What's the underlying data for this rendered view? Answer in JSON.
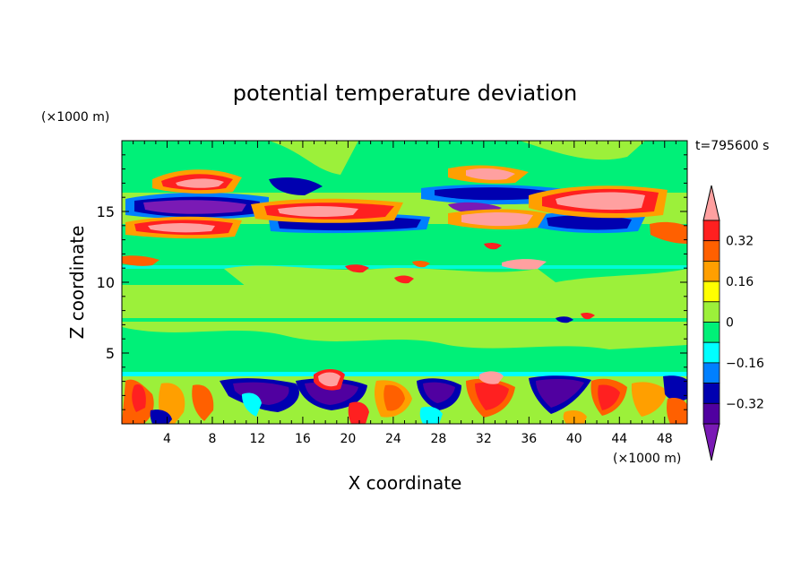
{
  "chart_data": {
    "type": "heatmap",
    "title": "potential temperature deviation",
    "xlabel": "X coordinate",
    "ylabel": "Z coordinate",
    "x_unit": "(×1000 m)",
    "y_unit": "(×1000 m)",
    "time_label": "t=795600 s",
    "xlim": [
      0,
      50
    ],
    "ylim": [
      0,
      20
    ],
    "x_ticks": [
      "4",
      "8",
      "12",
      "16",
      "20",
      "24",
      "28",
      "32",
      "36",
      "40",
      "44",
      "48"
    ],
    "y_ticks": [
      "5",
      "10",
      "15"
    ],
    "colorbar": {
      "levels": [
        -0.4,
        -0.32,
        -0.24,
        -0.16,
        -0.08,
        0,
        0.08,
        0.16,
        0.24,
        0.32,
        0.4
      ],
      "tick_labels": [
        "0.32",
        "0.16",
        "0",
        "−0.16",
        "−0.32"
      ],
      "colors": [
        "#ffa0a0",
        "#ff2020",
        "#ff6000",
        "#ff9f00",
        "#ffff00",
        "#9cf03a",
        "#00f078",
        "#00ffff",
        "#0080ff",
        "#0000b0",
        "#5000a0",
        "#7a1ab5"
      ],
      "extend": "both"
    },
    "field_description_bands": [
      {
        "z_range": [
          15.0,
          16.5
        ],
        "dominant": "strong negative (purple/navy) and positive (pink/red)"
      },
      {
        "z_range": [
          13.5,
          15.0
        ],
        "dominant": "positive (pink/red) layers"
      },
      {
        "z_range": [
          3.5,
          13.0
        ],
        "dominant": "near zero (green)"
      },
      {
        "z_range": [
          0,
          3.5
        ],
        "dominant": "mixed turbulent positive/negative"
      }
    ]
  }
}
